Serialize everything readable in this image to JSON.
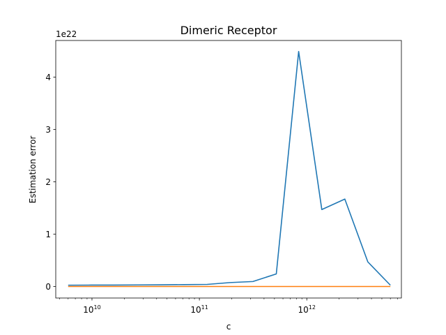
{
  "chart_data": {
    "type": "line",
    "title": "Dimeric Receptor",
    "xlabel": "c",
    "ylabel": "Estimation error",
    "x_scale": "log",
    "xlim": [
      4600000000.0,
      7600000000000.0
    ],
    "ylim": [
      -2.2e+21,
      4.7e+22
    ],
    "y_multiplier_label": "1e22",
    "x_ticks": [
      {
        "value": 10000000000.0,
        "base": "10",
        "exp": "10"
      },
      {
        "value": 100000000000.0,
        "base": "10",
        "exp": "11"
      },
      {
        "value": 1000000000000.0,
        "base": "10",
        "exp": "12"
      }
    ],
    "y_ticks": [
      {
        "value": 0,
        "label": "0"
      },
      {
        "value": 1e+22,
        "label": "1"
      },
      {
        "value": 2e+22,
        "label": "2"
      },
      {
        "value": 3e+22,
        "label": "3"
      },
      {
        "value": 4e+22,
        "label": "4"
      }
    ],
    "x": [
      6000000000.0,
      9800000000.0,
      16000000000.0,
      27000000000.0,
      44000000000.0,
      72000000000.0,
      118000000000.0,
      193000000000.0,
      315000000000.0,
      520000000000.0,
      840000000000.0,
      1380000000000.0,
      2260000000000.0,
      3700000000000.0,
      6000000000000.0
    ],
    "series": [
      {
        "color": "#1f77b4",
        "values": [
          2.5e+20,
          2.7e+20,
          2.8e+20,
          3e+20,
          3.3e+20,
          3.6e+20,
          4e+20,
          7.5e+20,
          9.5e+20,
          2.4e+21,
          4.49e+22,
          1.47e+22,
          1.67e+22,
          4.7e+21,
          2.5e+20
        ]
      },
      {
        "color": "#ff7f0e",
        "values": [
          0,
          0,
          0,
          0,
          0,
          0,
          0,
          0,
          0,
          0,
          0,
          0,
          0,
          0,
          0
        ]
      }
    ]
  }
}
